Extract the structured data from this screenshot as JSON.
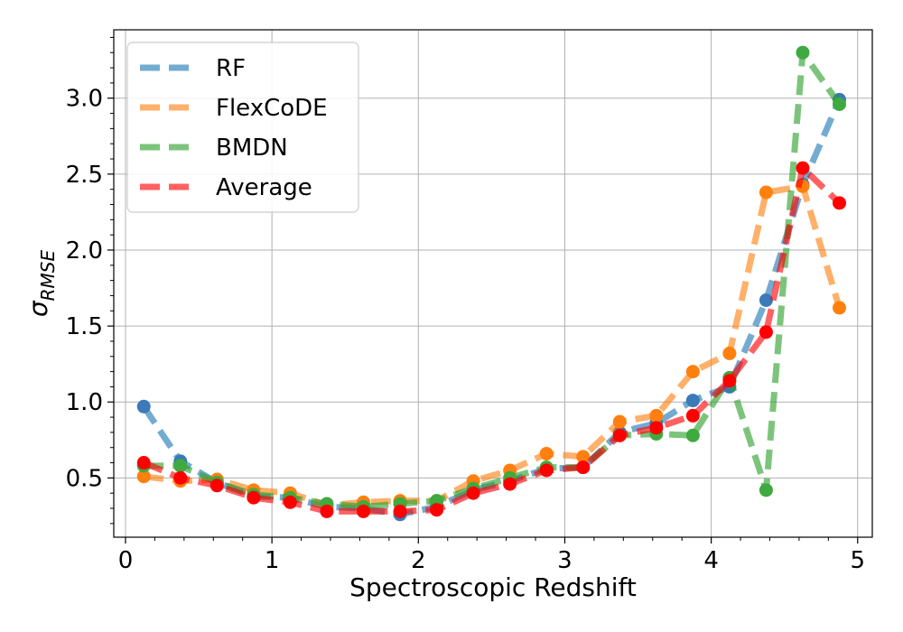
{
  "chart_data": {
    "type": "line",
    "xlabel": "Spectroscopic Redshift",
    "ylabel": "σ",
    "ylabel_subscript": "RMSE",
    "xlim": [
      -0.08,
      5.1
    ],
    "ylim": [
      0.11,
      3.45
    ],
    "xticks": [
      0,
      1,
      2,
      3,
      4,
      5
    ],
    "xtick_labels": [
      "0",
      "1",
      "2",
      "3",
      "4",
      "5"
    ],
    "yticks": [
      0.5,
      1.0,
      1.5,
      2.0,
      2.5,
      3.0
    ],
    "ytick_labels": [
      "0.5",
      "1.0",
      "1.5",
      "2.0",
      "2.5",
      "3.0"
    ],
    "grid": true,
    "legend_position": "top-left",
    "x": [
      0.125,
      0.375,
      0.625,
      0.875,
      1.125,
      1.375,
      1.625,
      1.875,
      2.125,
      2.375,
      2.625,
      2.875,
      3.125,
      3.375,
      3.625,
      3.875,
      4.125,
      4.375,
      4.625,
      4.875
    ],
    "series": [
      {
        "name": "RF",
        "color": "#1f77b4",
        "marker_color": "#3a7ab8",
        "values": [
          0.97,
          0.61,
          0.47,
          0.38,
          0.37,
          0.31,
          0.3,
          0.26,
          0.31,
          0.42,
          0.48,
          0.56,
          0.57,
          0.8,
          0.86,
          1.01,
          1.1,
          1.67,
          2.43,
          2.99
        ]
      },
      {
        "name": "FlexCoDE",
        "color": "#ff7f0e",
        "marker_color": "#ff800e",
        "values": [
          0.51,
          0.48,
          0.49,
          0.42,
          0.4,
          0.32,
          0.34,
          0.35,
          0.35,
          0.48,
          0.55,
          0.66,
          0.64,
          0.87,
          0.91,
          1.2,
          1.32,
          2.38,
          2.42,
          1.62
        ]
      },
      {
        "name": "BMDN",
        "color": "#2ca02c",
        "marker_color": "#3faa3f",
        "values": [
          0.58,
          0.58,
          0.47,
          0.39,
          0.37,
          0.33,
          0.31,
          0.33,
          0.35,
          0.43,
          0.5,
          0.57,
          0.57,
          0.78,
          0.79,
          0.78,
          1.16,
          0.42,
          3.3,
          2.96
        ]
      },
      {
        "name": "Average",
        "color": "#ff0000",
        "marker_color": "#ff0000",
        "values": [
          0.6,
          0.5,
          0.45,
          0.37,
          0.34,
          0.28,
          0.28,
          0.28,
          0.29,
          0.4,
          0.46,
          0.55,
          0.57,
          0.78,
          0.83,
          0.91,
          1.14,
          1.46,
          2.54,
          2.31
        ]
      }
    ]
  }
}
